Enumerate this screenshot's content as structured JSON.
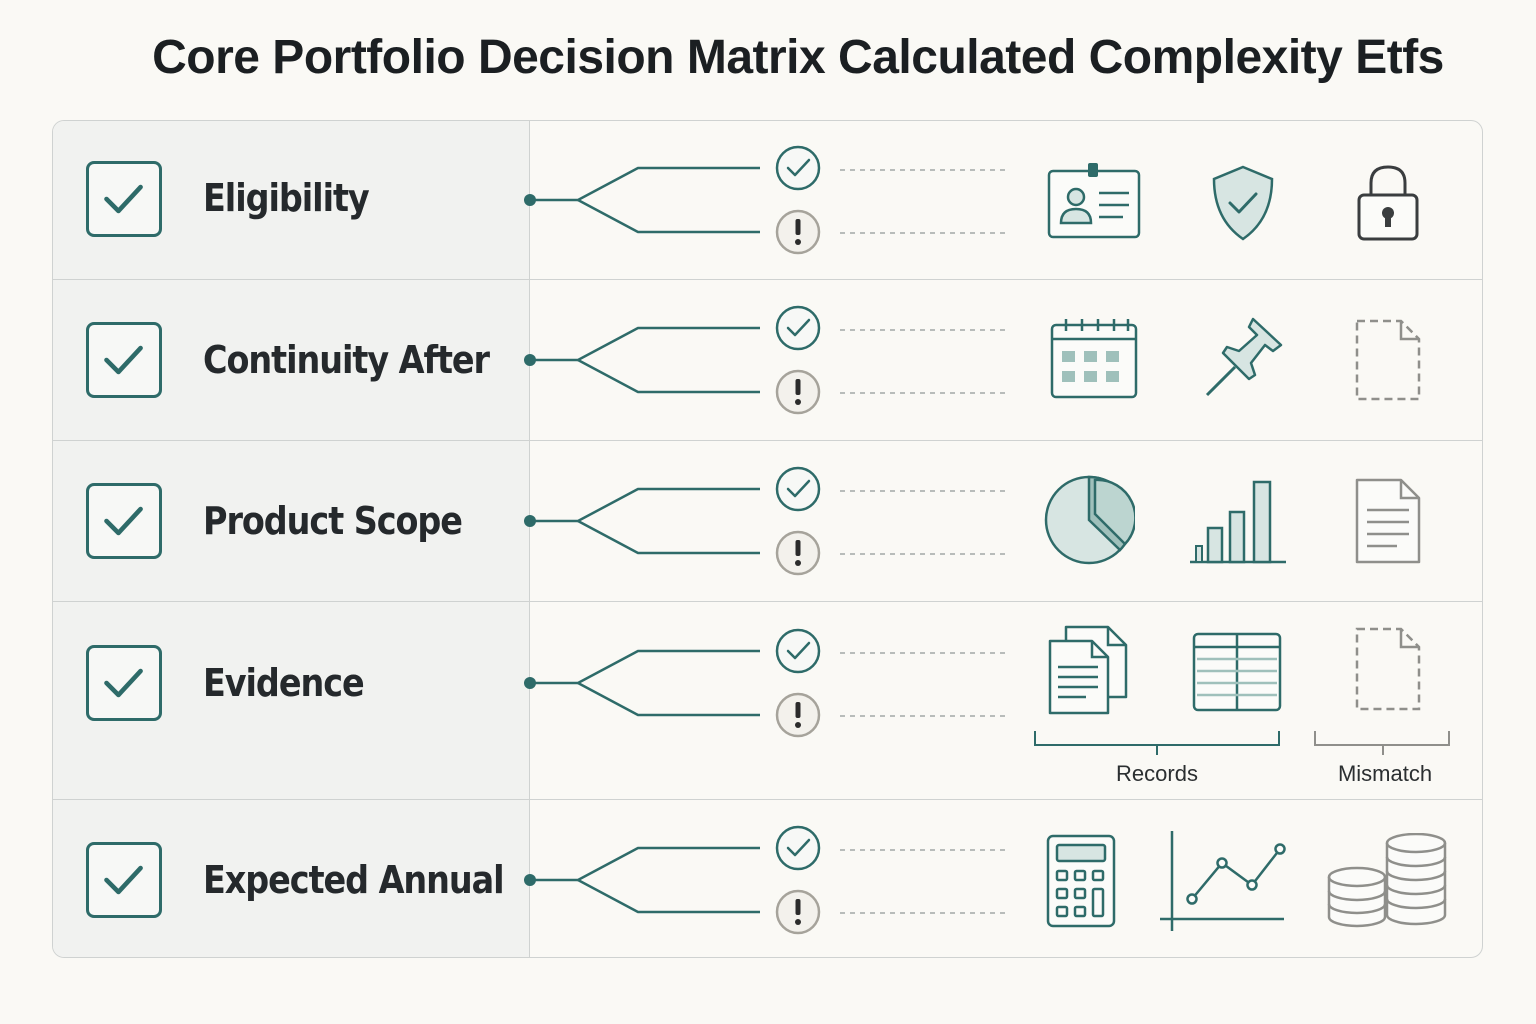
{
  "title": "Core Portfolio Decision Matrix Calculated Complexity Etfs",
  "colors": {
    "teal": "#2e6b69",
    "teal_fill": "#d7e5e2",
    "grey": "#8f8f8b",
    "border": "#cfd2d1",
    "warning_fill": "#f3f1ec"
  },
  "rows": [
    {
      "label": "Eligibility",
      "branches": [
        "check-circle-icon",
        "exclamation-circle-icon"
      ],
      "icons": [
        "id-card-icon",
        "shield-check-icon",
        "padlock-icon"
      ]
    },
    {
      "label": "Continuity After",
      "branches": [
        "check-circle-icon",
        "exclamation-circle-icon"
      ],
      "icons": [
        "calendar-icon",
        "pushpin-icon",
        "dashed-document-icon"
      ]
    },
    {
      "label": "Product Scope",
      "branches": [
        "check-circle-icon",
        "exclamation-circle-icon"
      ],
      "icons": [
        "pie-chart-icon",
        "bar-chart-icon",
        "document-icon"
      ]
    },
    {
      "label": "Evidence",
      "branches": [
        "check-circle-icon",
        "exclamation-circle-icon"
      ],
      "icons": [
        "stacked-documents-icon",
        "ledger-table-icon",
        "dashed-document-icon"
      ],
      "groups": [
        {
          "label": "Records"
        },
        {
          "label": "Mismatch"
        }
      ]
    },
    {
      "label": "Expected Annual",
      "branches": [
        "check-circle-icon",
        "exclamation-circle-icon"
      ],
      "icons": [
        "calculator-icon",
        "line-chart-icon",
        "coin-stacks-icon"
      ]
    }
  ]
}
